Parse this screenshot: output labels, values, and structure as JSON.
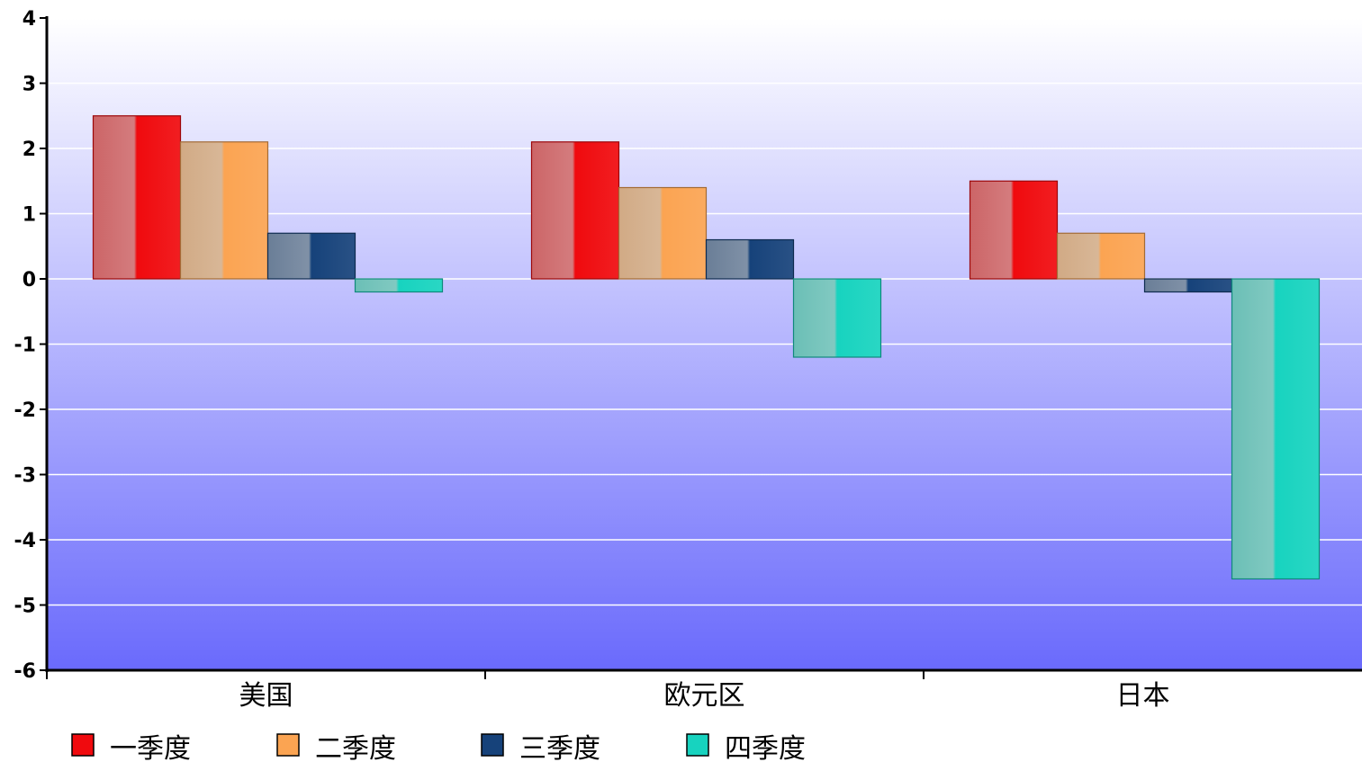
{
  "colors": {
    "plot_top": "#ffffff",
    "plot_bottom": "#6a6afc",
    "grid": "#ffffff",
    "axis": "#000000"
  },
  "chart_data": {
    "type": "bar",
    "categories": [
      "美国",
      "欧元区",
      "日本"
    ],
    "series": [
      {
        "name": "一季度",
        "values": [
          2.5,
          2.1,
          1.5
        ],
        "color": "#f00a0e"
      },
      {
        "name": "二季度",
        "values": [
          2.1,
          1.4,
          0.7
        ],
        "color": "#fba452"
      },
      {
        "name": "三季度",
        "values": [
          0.7,
          0.6,
          -0.2
        ],
        "color": "#16427a"
      },
      {
        "name": "四季度",
        "values": [
          -0.2,
          -1.2,
          -4.6
        ],
        "color": "#17d3bf"
      }
    ],
    "yticks": [
      4,
      3,
      2,
      1,
      0,
      -1,
      -2,
      -3,
      -4,
      -5,
      -6
    ],
    "ylim": [
      -6,
      4
    ],
    "grid": true,
    "legend": "bottom-left",
    "title": "",
    "xlabel": "",
    "ylabel": ""
  }
}
